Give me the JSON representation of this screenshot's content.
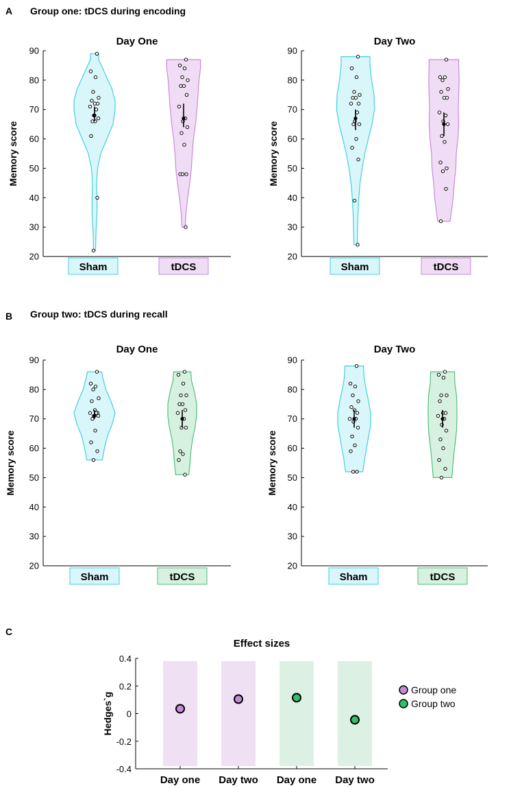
{
  "figure": {
    "panels": [
      {
        "letter": "A",
        "title": "Group one: tDCS during encoding"
      },
      {
        "letter": "B",
        "title": "Group two: tDCS during recall"
      },
      {
        "letter": "C",
        "title": ""
      }
    ]
  },
  "colors": {
    "sham_edge": "#3fd0e0",
    "sham_fill": "#d9f6fa",
    "tdcs1_edge": "#c98ad9",
    "tdcs1_fill": "#f0dcf4",
    "tdcs2_edge": "#4ec07a",
    "tdcs2_fill": "#d7f1e0",
    "g1_marker": "#c48ad6",
    "g2_marker": "#2fc06a",
    "g1_band": "#efe0f4",
    "g2_band": "#dcf1e4"
  },
  "chart_data": [
    {
      "id": "A1",
      "type": "violin",
      "title": "Day One",
      "ylabel": "Memory score",
      "ylim": [
        20,
        90
      ],
      "yticks": [
        20,
        30,
        40,
        50,
        60,
        70,
        80,
        90
      ],
      "categories": [
        "Sham",
        "tDCS"
      ],
      "series": [
        {
          "name": "Sham",
          "color": "sham",
          "range": [
            22,
            89
          ],
          "mean": 68,
          "ci": [
            66,
            71
          ],
          "points": [
            89,
            83,
            81,
            76,
            74,
            73,
            72,
            72,
            71,
            70,
            68,
            67,
            66,
            66,
            61,
            40,
            22
          ],
          "density": [
            [
              22,
              0.05
            ],
            [
              26,
              0.06
            ],
            [
              30,
              0.08
            ],
            [
              35,
              0.12
            ],
            [
              40,
              0.12
            ],
            [
              45,
              0.1
            ],
            [
              50,
              0.15
            ],
            [
              55,
              0.3
            ],
            [
              60,
              0.6
            ],
            [
              65,
              0.9
            ],
            [
              70,
              1.0
            ],
            [
              73,
              1.0
            ],
            [
              77,
              0.85
            ],
            [
              80,
              0.65
            ],
            [
              84,
              0.4
            ],
            [
              87,
              0.2
            ],
            [
              89,
              0.2
            ]
          ]
        },
        {
          "name": "tDCS",
          "color": "tdcs1",
          "range": [
            30,
            87
          ],
          "mean": 67,
          "ci": [
            64,
            72
          ],
          "points": [
            87,
            85,
            84,
            81,
            80,
            78,
            78,
            75,
            71,
            67,
            66,
            64,
            62,
            58,
            48,
            48,
            48,
            30
          ],
          "density": [
            [
              30,
              0.08
            ],
            [
              35,
              0.12
            ],
            [
              40,
              0.2
            ],
            [
              45,
              0.3
            ],
            [
              50,
              0.38
            ],
            [
              55,
              0.42
            ],
            [
              60,
              0.48
            ],
            [
              65,
              0.58
            ],
            [
              70,
              0.65
            ],
            [
              75,
              0.7
            ],
            [
              80,
              0.75
            ],
            [
              84,
              0.82
            ],
            [
              87,
              0.82
            ]
          ]
        }
      ]
    },
    {
      "id": "A2",
      "type": "violin",
      "title": "Day Two",
      "ylabel": "Memory score",
      "ylim": [
        20,
        90
      ],
      "yticks": [
        20,
        30,
        40,
        50,
        60,
        70,
        80,
        90
      ],
      "categories": [
        "Sham",
        "tDCS"
      ],
      "series": [
        {
          "name": "Sham",
          "color": "sham",
          "range": [
            24,
            88
          ],
          "mean": 67,
          "ci": [
            63,
            70
          ],
          "points": [
            88,
            84,
            81,
            76,
            75,
            74,
            74,
            72,
            72,
            69,
            66,
            65,
            65,
            60,
            57,
            53,
            39,
            24
          ],
          "density": [
            [
              24,
              0.08
            ],
            [
              30,
              0.1
            ],
            [
              35,
              0.12
            ],
            [
              40,
              0.16
            ],
            [
              45,
              0.22
            ],
            [
              50,
              0.32
            ],
            [
              55,
              0.45
            ],
            [
              60,
              0.62
            ],
            [
              65,
              0.8
            ],
            [
              70,
              0.92
            ],
            [
              75,
              0.9
            ],
            [
              80,
              0.78
            ],
            [
              85,
              0.7
            ],
            [
              88,
              0.7
            ]
          ]
        },
        {
          "name": "tDCS",
          "color": "tdcs1",
          "range": [
            32,
            87
          ],
          "mean": 65,
          "ci": [
            61,
            69
          ],
          "points": [
            87,
            81,
            81,
            80,
            77,
            76,
            74,
            74,
            69,
            68,
            66,
            65,
            61,
            59,
            52,
            50,
            49,
            43,
            32
          ],
          "density": [
            [
              32,
              0.3
            ],
            [
              36,
              0.38
            ],
            [
              40,
              0.45
            ],
            [
              45,
              0.5
            ],
            [
              50,
              0.58
            ],
            [
              55,
              0.6
            ],
            [
              60,
              0.68
            ],
            [
              65,
              0.72
            ],
            [
              70,
              0.7
            ],
            [
              75,
              0.72
            ],
            [
              80,
              0.74
            ],
            [
              85,
              0.72
            ],
            [
              87,
              0.72
            ]
          ]
        }
      ]
    },
    {
      "id": "B1",
      "type": "violin",
      "title": "Day One",
      "ylabel": "Memory score",
      "ylim": [
        20,
        90
      ],
      "yticks": [
        20,
        30,
        40,
        50,
        60,
        70,
        80,
        90
      ],
      "categories": [
        "Sham",
        "tDCS"
      ],
      "series": [
        {
          "name": "Sham",
          "color": "sham",
          "range": [
            56,
            86
          ],
          "mean": 71,
          "ci": [
            70,
            73
          ],
          "points": [
            86,
            82,
            81,
            80,
            77,
            76,
            73,
            72,
            72,
            72,
            71,
            71,
            70,
            66,
            62,
            59,
            56
          ],
          "density": [
            [
              56,
              0.38
            ],
            [
              60,
              0.48
            ],
            [
              64,
              0.62
            ],
            [
              68,
              0.85
            ],
            [
              72,
              1.0
            ],
            [
              76,
              0.8
            ],
            [
              80,
              0.55
            ],
            [
              84,
              0.4
            ],
            [
              86,
              0.35
            ]
          ]
        },
        {
          "name": "tDCS",
          "color": "tdcs2",
          "range": [
            51,
            86
          ],
          "mean": 70,
          "ci": [
            67,
            73
          ],
          "points": [
            86,
            85,
            82,
            78,
            78,
            75,
            75,
            73,
            72,
            70,
            67,
            67,
            59,
            58,
            56,
            51
          ],
          "density": [
            [
              51,
              0.32
            ],
            [
              55,
              0.38
            ],
            [
              59,
              0.42
            ],
            [
              63,
              0.5
            ],
            [
              67,
              0.62
            ],
            [
              71,
              0.7
            ],
            [
              75,
              0.7
            ],
            [
              79,
              0.6
            ],
            [
              83,
              0.45
            ],
            [
              86,
              0.42
            ]
          ]
        }
      ]
    },
    {
      "id": "B2",
      "type": "violin",
      "title": "Day Two",
      "ylabel": "Memory score",
      "ylim": [
        20,
        90
      ],
      "yticks": [
        20,
        30,
        40,
        50,
        60,
        70,
        80,
        90
      ],
      "categories": [
        "Sham",
        "tDCS"
      ],
      "series": [
        {
          "name": "Sham",
          "color": "sham",
          "range": [
            52,
            88
          ],
          "mean": 70,
          "ci": [
            67,
            73
          ],
          "points": [
            88,
            82,
            81,
            78,
            76,
            74,
            73,
            72,
            70,
            70,
            69,
            67,
            64,
            61,
            59,
            52,
            52
          ],
          "density": [
            [
              52,
              0.42
            ],
            [
              56,
              0.5
            ],
            [
              60,
              0.6
            ],
            [
              64,
              0.7
            ],
            [
              68,
              0.8
            ],
            [
              72,
              0.8
            ],
            [
              76,
              0.7
            ],
            [
              80,
              0.58
            ],
            [
              84,
              0.48
            ],
            [
              88,
              0.45
            ]
          ]
        },
        {
          "name": "tDCS",
          "color": "tdcs2",
          "range": [
            50,
            86
          ],
          "mean": 70,
          "ci": [
            67,
            73
          ],
          "points": [
            86,
            85,
            84,
            78,
            78,
            76,
            72,
            72,
            71,
            70,
            68,
            66,
            63,
            60,
            56,
            53,
            50
          ],
          "density": [
            [
              50,
              0.45
            ],
            [
              54,
              0.5
            ],
            [
              58,
              0.55
            ],
            [
              62,
              0.62
            ],
            [
              66,
              0.68
            ],
            [
              70,
              0.7
            ],
            [
              74,
              0.7
            ],
            [
              78,
              0.68
            ],
            [
              82,
              0.6
            ],
            [
              86,
              0.58
            ]
          ]
        }
      ]
    },
    {
      "id": "C",
      "type": "scatter",
      "title": "Effect sizes",
      "ylabel": "Hedges`g",
      "ylim": [
        -0.4,
        0.4
      ],
      "yticks": [
        -0.4,
        -0.2,
        0,
        0.2,
        0.4
      ],
      "categories": [
        "Day one",
        "Day two",
        "Day one",
        "Day two"
      ],
      "groups": [
        "g1",
        "g1",
        "g2",
        "g2"
      ],
      "values": [
        0.035,
        0.105,
        0.115,
        -0.045
      ],
      "legend": [
        {
          "name": "Group one",
          "color": "g1"
        },
        {
          "name": "Group two",
          "color": "g2"
        }
      ]
    }
  ]
}
